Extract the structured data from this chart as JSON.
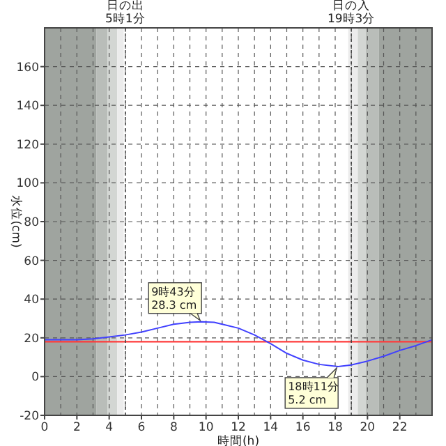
{
  "chart_data": {
    "type": "line",
    "xlabel": "時間(h)",
    "ylabel": "水位(cm)",
    "xlim": [
      0,
      24
    ],
    "xticks": [
      0,
      2,
      4,
      6,
      8,
      10,
      12,
      14,
      16,
      18,
      20,
      22
    ],
    "ylim": [
      -20,
      180
    ],
    "yticks": [
      -20,
      0,
      20,
      40,
      60,
      80,
      100,
      120,
      140,
      160
    ],
    "grid": true,
    "marker": "none",
    "line_style": "solid",
    "bands": [
      {
        "axis": "x",
        "from": 0,
        "to": 3.2,
        "color": "#9fa49f"
      },
      {
        "axis": "x",
        "from": 3.2,
        "to": 3.9,
        "color": "#b9bdb9"
      },
      {
        "axis": "x",
        "from": 3.9,
        "to": 4.5,
        "color": "#d3d6d3"
      },
      {
        "axis": "x",
        "from": 4.5,
        "to": 4.9,
        "color": "#ececec"
      },
      {
        "axis": "x",
        "from": 18.8,
        "to": 19.4,
        "color": "#ececec"
      },
      {
        "axis": "x",
        "from": 19.4,
        "to": 19.9,
        "color": "#d3d6d3"
      },
      {
        "axis": "x",
        "from": 19.9,
        "to": 20.7,
        "color": "#b9bdb9"
      },
      {
        "axis": "x",
        "from": 20.7,
        "to": 24,
        "color": "#9fa49f"
      }
    ],
    "ref_lines": [
      {
        "axis": "y",
        "value": 18,
        "color": "#ff3b3b"
      },
      {
        "axis": "x",
        "value": 5,
        "label": "日の出\n5時1分",
        "color": "#444444",
        "line_style": "dotted"
      },
      {
        "axis": "x",
        "value": 19,
        "label": "日の入\n19時3分",
        "color": "#444444",
        "line_style": "dotted"
      }
    ],
    "series": [
      {
        "color": "#4040ff",
        "x": [
          0,
          1,
          2,
          3,
          4,
          5,
          6,
          7,
          8,
          9,
          9.72,
          10.5,
          11,
          12,
          13,
          14,
          15,
          16,
          17,
          18.18,
          19,
          20,
          21,
          22,
          23,
          24
        ],
        "values": [
          19,
          19,
          19,
          19.5,
          20.5,
          21.5,
          23,
          25,
          27,
          28,
          28.3,
          28,
          27,
          25,
          21.5,
          17,
          12,
          8.5,
          6.3,
          5.2,
          6,
          8,
          10.5,
          13.5,
          16,
          19
        ]
      }
    ],
    "annotations": [
      {
        "text": "9時43分\n28.3 cm",
        "x": 9.72,
        "y": 28.3
      },
      {
        "text": "18時11分\n5.2 cm",
        "x": 18.18,
        "y": 5.2
      }
    ]
  }
}
